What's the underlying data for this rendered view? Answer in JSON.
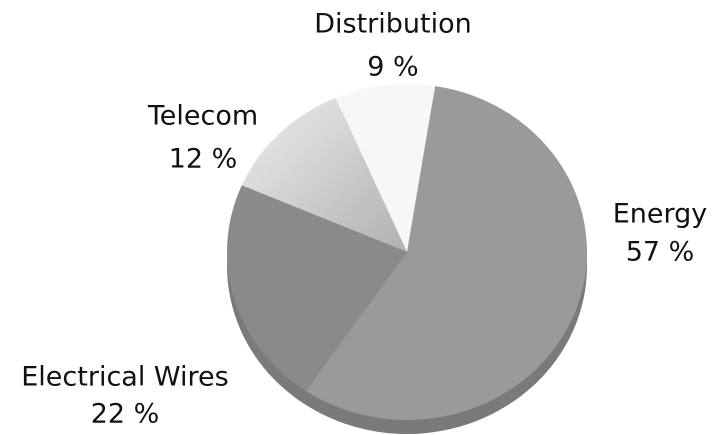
{
  "chart_data": {
    "type": "pie",
    "categories": [
      "Energy",
      "Electrical Wires",
      "Telecom",
      "Distribution"
    ],
    "values": [
      57,
      22,
      12,
      9
    ],
    "value_labels": [
      "57 %",
      "22 %",
      "12 %",
      "9 %"
    ],
    "colors": [
      "#9a9a9a",
      "#8a8a8a",
      "#c8c8c8",
      "#f7f7f7"
    ]
  }
}
